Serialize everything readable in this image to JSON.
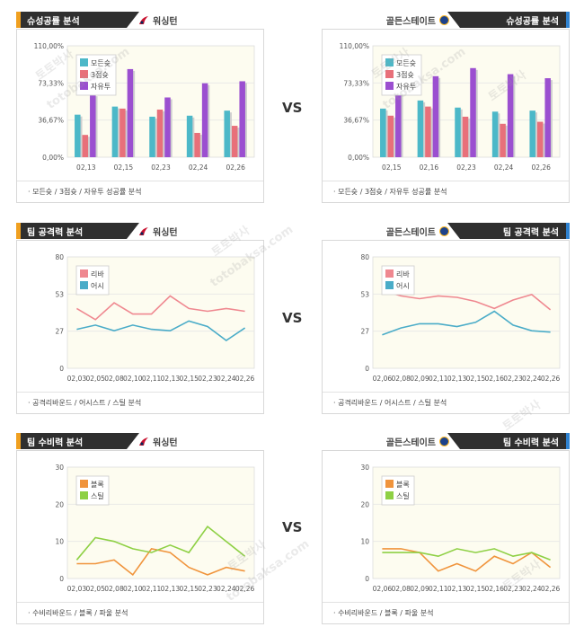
{
  "watermarks": [
    "토토박사",
    "totobaksa.com"
  ],
  "vs_label": "VS",
  "panels": [
    {
      "id": "p1",
      "side": "left",
      "title": "슈성공률 분석",
      "team": "워싱턴",
      "team_logo": "wizards-logo-icon",
      "footer": "·  모든슛 / 3점슛 / 자유투 성공률 분석",
      "chart_data": {
        "type": "bar",
        "categories": [
          "02,13",
          "02,15",
          "02,23",
          "02,24",
          "02,26"
        ],
        "y_ticks": [
          "110,00%",
          "73,33%",
          "36,67%",
          "0,00%"
        ],
        "ylim": [
          0,
          110
        ],
        "series": [
          {
            "name": "모든슛",
            "color": "#4cb8c8",
            "values": [
              42,
              50,
              40,
              41,
              46
            ]
          },
          {
            "name": "3점슛",
            "color": "#e8707a",
            "values": [
              22,
              48,
              47,
              24,
              31
            ]
          },
          {
            "name": "자유투",
            "color": "#9b4fd0",
            "values": [
              62,
              87,
              59,
              73,
              75
            ]
          }
        ],
        "legend": "top-left"
      }
    },
    {
      "id": "p2",
      "side": "right",
      "title": "슈성공률 분석",
      "team": "골든스테이트",
      "team_logo": "warriors-logo-icon",
      "footer": "·  모든슛 / 3점슛 / 자유투 성공률 분석",
      "chart_data": {
        "type": "bar",
        "categories": [
          "02,15",
          "02,16",
          "02,23",
          "02,24",
          "02,26"
        ],
        "y_ticks": [
          "110,00%",
          "73,33%",
          "36,67%",
          "0,00%"
        ],
        "ylim": [
          0,
          110
        ],
        "series": [
          {
            "name": "모든슛",
            "color": "#4cb8c8",
            "values": [
              48,
              56,
              49,
              45,
              46
            ]
          },
          {
            "name": "3점슛",
            "color": "#e8707a",
            "values": [
              41,
              50,
              40,
              33,
              35
            ]
          },
          {
            "name": "자유투",
            "color": "#9b4fd0",
            "values": [
              70,
              80,
              88,
              82,
              78
            ]
          }
        ],
        "legend": "top-left"
      }
    },
    {
      "id": "p3",
      "side": "left",
      "title": "팀 공격력 분석",
      "team": "워싱턴",
      "team_logo": "wizards-logo-icon",
      "footer": "·  공격리바운드 / 어시스트 / 스틸 분석",
      "chart_data": {
        "type": "line",
        "x": [
          "02,03",
          "02,05",
          "02,08",
          "02,10",
          "02,11",
          "02,13",
          "02,15",
          "02,23",
          "02,24",
          "02,26"
        ],
        "y_ticks": [
          "80",
          "53",
          "27",
          "0"
        ],
        "ylim": [
          0,
          80
        ],
        "series": [
          {
            "name": "리바",
            "color": "#ef8890",
            "values": [
              43,
              35,
              47,
              39,
              39,
              52,
              43,
              41,
              43,
              41
            ]
          },
          {
            "name": "어시",
            "color": "#4aacc8",
            "values": [
              28,
              31,
              27,
              31,
              28,
              27,
              34,
              30,
              20,
              29
            ]
          }
        ],
        "legend": "top-left"
      }
    },
    {
      "id": "p4",
      "side": "right",
      "title": "팀 공격력 분석",
      "team": "골든스테이트",
      "team_logo": "warriors-logo-icon",
      "footer": "·  공격리바운드 / 어시스트 / 스틸 분석",
      "chart_data": {
        "type": "line",
        "x": [
          "02,06",
          "02,08",
          "02,09",
          "02,11",
          "02,13",
          "02,15",
          "02,16",
          "02,23",
          "02,24",
          "02,26"
        ],
        "y_ticks": [
          "80",
          "53",
          "27",
          "0"
        ],
        "ylim": [
          0,
          80
        ],
        "series": [
          {
            "name": "리바",
            "color": "#ef8890",
            "values": [
              56,
              52,
              50,
              52,
              51,
              48,
              43,
              49,
              53,
              42
            ]
          },
          {
            "name": "어시",
            "color": "#4aacc8",
            "values": [
              24,
              29,
              32,
              32,
              30,
              33,
              41,
              31,
              27,
              26
            ]
          }
        ],
        "legend": "top-left"
      }
    },
    {
      "id": "p5",
      "side": "left",
      "title": "팀 수비력 분석",
      "team": "워싱턴",
      "team_logo": "wizards-logo-icon",
      "footer": "·  수비리바운드 / 블록 / 파울 분석",
      "chart_data": {
        "type": "line",
        "x": [
          "02,03",
          "02,05",
          "02,08",
          "02,10",
          "02,11",
          "02,13",
          "02,15",
          "02,23",
          "02,24",
          "02,26"
        ],
        "y_ticks": [
          "30",
          "20",
          "10",
          "0"
        ],
        "ylim": [
          0,
          30
        ],
        "series": [
          {
            "name": "블록",
            "color": "#f0943c",
            "values": [
              4,
              4,
              5,
              1,
              8,
              7,
              3,
              1,
              3,
              2
            ]
          },
          {
            "name": "스틸",
            "color": "#8ed044",
            "values": [
              5,
              11,
              10,
              8,
              7,
              9,
              7,
              14,
              10,
              6
            ]
          }
        ],
        "legend": "top-left"
      }
    },
    {
      "id": "p6",
      "side": "right",
      "title": "팀 수비력 분석",
      "team": "골든스테이트",
      "team_logo": "warriors-logo-icon",
      "footer": "·  수비리바운드 / 블록 / 파울 분석",
      "chart_data": {
        "type": "line",
        "x": [
          "02,06",
          "02,08",
          "02,09",
          "02,11",
          "02,13",
          "02,15",
          "02,16",
          "02,23",
          "02,24",
          "02,26"
        ],
        "y_ticks": [
          "30",
          "20",
          "10",
          "0"
        ],
        "ylim": [
          0,
          30
        ],
        "series": [
          {
            "name": "블록",
            "color": "#f0943c",
            "values": [
              8,
              8,
              7,
              2,
              4,
              2,
              6,
              4,
              7,
              3
            ]
          },
          {
            "name": "스틸",
            "color": "#8ed044",
            "values": [
              7,
              7,
              7,
              6,
              8,
              7,
              8,
              6,
              7,
              5
            ]
          }
        ],
        "legend": "top-left"
      }
    }
  ]
}
